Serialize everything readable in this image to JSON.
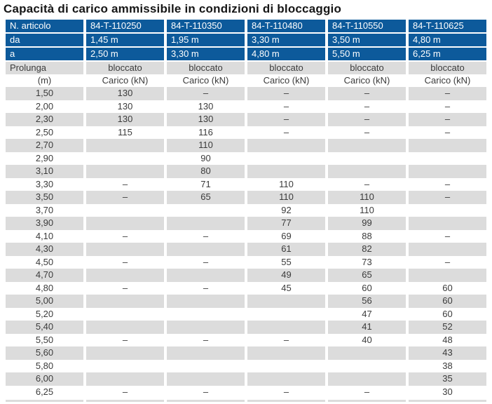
{
  "title": "Capacità di carico ammissibile in condizioni di bloccaggio",
  "colors": {
    "header_blue": "#0d5a9b",
    "row_gray": "#dcdcdc",
    "text_dark": "#3b3b3b"
  },
  "table": {
    "article_label": "N. articolo",
    "articles": [
      "84-T-110250",
      "84-T-110350",
      "84-T-110480",
      "84-T-110550",
      "84-T-110625"
    ],
    "da_label": "da",
    "da_values": [
      "1,45 m",
      "1,95 m",
      "3,30 m",
      "3,50 m",
      "4,80 m"
    ],
    "a_label": "a",
    "a_values": [
      "2,50 m",
      "3,30 m",
      "4,80 m",
      "5,50 m",
      "6,25 m"
    ],
    "prolunga_label": "Prolunga",
    "bloccato_label": "bloccato",
    "unit_label": "(m)",
    "carico_label": "Carico (kN)",
    "rows": [
      {
        "m": "1,50",
        "values": [
          "130",
          "–",
          "–",
          "–",
          "–"
        ]
      },
      {
        "m": "2,00",
        "values": [
          "130",
          "130",
          "–",
          "–",
          "–"
        ]
      },
      {
        "m": "2,30",
        "values": [
          "130",
          "130",
          "–",
          "–",
          "–"
        ]
      },
      {
        "m": "2,50",
        "values": [
          "115",
          "116",
          "–",
          "–",
          "–"
        ]
      },
      {
        "m": "2,70",
        "values": [
          "",
          "110",
          "",
          "",
          ""
        ]
      },
      {
        "m": "2,90",
        "values": [
          "",
          "90",
          "",
          "",
          ""
        ]
      },
      {
        "m": "3,10",
        "values": [
          "",
          "80",
          "",
          "",
          ""
        ]
      },
      {
        "m": "3,30",
        "values": [
          "–",
          "71",
          "110",
          "–",
          "–"
        ]
      },
      {
        "m": "3,50",
        "values": [
          "–",
          "65",
          "110",
          "110",
          "–"
        ]
      },
      {
        "m": "3,70",
        "values": [
          "",
          "",
          "92",
          "110",
          ""
        ]
      },
      {
        "m": "3,90",
        "values": [
          "",
          "",
          "77",
          "99",
          ""
        ]
      },
      {
        "m": "4,10",
        "values": [
          "–",
          "–",
          "69",
          "88",
          "–"
        ]
      },
      {
        "m": "4,30",
        "values": [
          "",
          "",
          "61",
          "82",
          ""
        ]
      },
      {
        "m": "4,50",
        "values": [
          "–",
          "–",
          "55",
          "73",
          "–"
        ]
      },
      {
        "m": "4,70",
        "values": [
          "",
          "",
          "49",
          "65",
          ""
        ]
      },
      {
        "m": "4,80",
        "values": [
          "–",
          "–",
          "45",
          "60",
          "60"
        ]
      },
      {
        "m": "5,00",
        "values": [
          "",
          "",
          "",
          "56",
          "60"
        ]
      },
      {
        "m": "5,20",
        "values": [
          "",
          "",
          "",
          "47",
          "60"
        ]
      },
      {
        "m": "5,40",
        "values": [
          "",
          "",
          "",
          "41",
          "52"
        ]
      },
      {
        "m": "5,50",
        "values": [
          "–",
          "–",
          "–",
          "40",
          "48"
        ]
      },
      {
        "m": "5,60",
        "values": [
          "",
          "",
          "",
          "",
          "43"
        ]
      },
      {
        "m": "5,80",
        "values": [
          "",
          "",
          "",
          "",
          "38"
        ]
      },
      {
        "m": "6,00",
        "values": [
          "",
          "",
          "",
          "",
          "35"
        ]
      },
      {
        "m": "6,25",
        "values": [
          "–",
          "–",
          "–",
          "–",
          "30"
        ]
      }
    ]
  }
}
